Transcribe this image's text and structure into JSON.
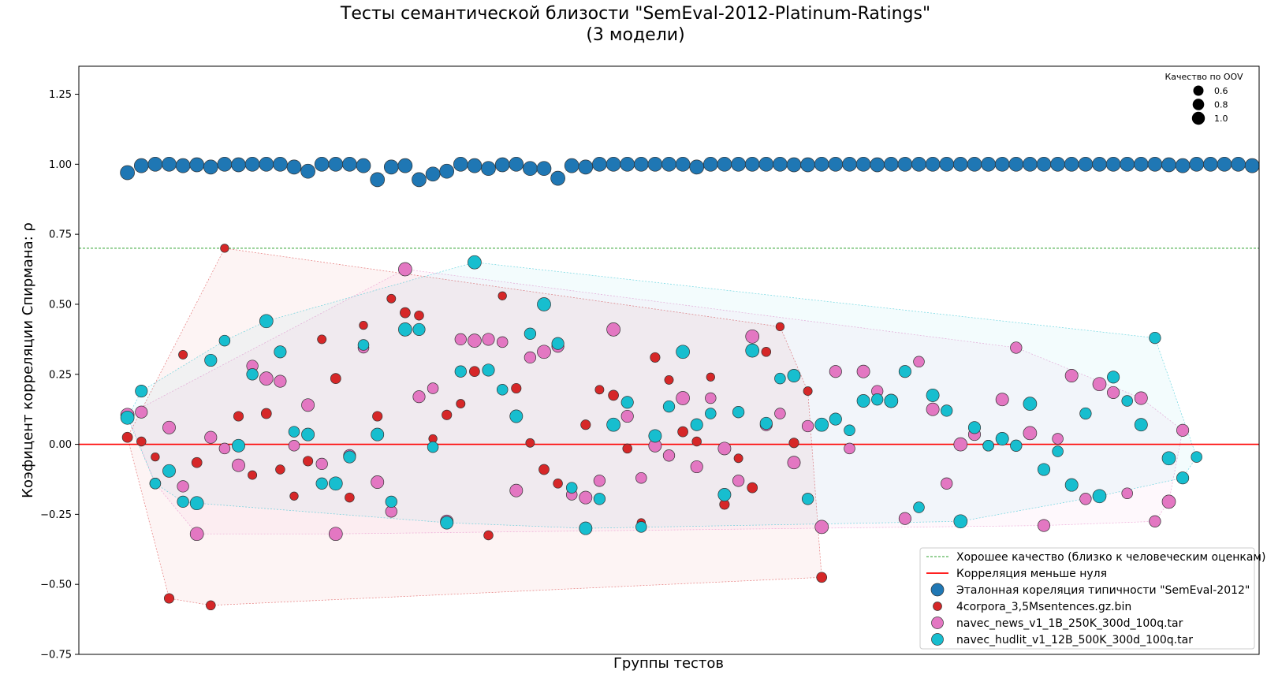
{
  "chart_data": {
    "type": "scatter",
    "title": "Тесты семантической близости \"SemEval-2012-Platinum-Ratings\"",
    "subtitle": "(3 модели)",
    "xlabel": "Группы тестов",
    "ylabel": "Коэфицент корреляции Спирмана: ρ",
    "xlim": [
      -3.5,
      81.5
    ],
    "ylim": [
      -0.75,
      1.35
    ],
    "yticks": [
      "1.25",
      "1.00",
      "0.75",
      "0.50",
      "0.25",
      "0.00",
      "−0.25",
      "−0.50",
      "−0.75"
    ],
    "ytick_values": [
      1.25,
      1.0,
      0.75,
      0.5,
      0.25,
      0.0,
      -0.25,
      -0.5,
      -0.75
    ],
    "grid": false,
    "legend_position": "lower-right",
    "reference_lines": [
      {
        "name": "Хорошее качество (близко к человеческим оценкам)",
        "y": 0.7,
        "style": "dashed",
        "color": "#2ca02c"
      },
      {
        "name": "Корреляция меньше нуля",
        "y": 0.0,
        "style": "solid",
        "color": "#ff0000"
      }
    ],
    "size_legend": {
      "title": "Качество по OOV",
      "entries": [
        "0.6",
        "0.8",
        "1.0"
      ],
      "values": [
        0.6,
        0.8,
        1.0
      ]
    },
    "series": [
      {
        "name": "Эталонная кореляция типичности \"SemEval-2012\"",
        "color": "#1f77b4",
        "hull": false,
        "points": [
          [
            0,
            0.97
          ],
          [
            1,
            0.995
          ],
          [
            2,
            1.0
          ],
          [
            3,
            1.0
          ],
          [
            4,
            0.995
          ],
          [
            5,
            0.998
          ],
          [
            6,
            0.99
          ],
          [
            7,
            1.0
          ],
          [
            8,
            0.998
          ],
          [
            9,
            1.0
          ],
          [
            10,
            1.0
          ],
          [
            11,
            1.0
          ],
          [
            12,
            0.99
          ],
          [
            13,
            0.975
          ],
          [
            14,
            1.0
          ],
          [
            15,
            1.0
          ],
          [
            16,
            1.0
          ],
          [
            17,
            0.995
          ],
          [
            18,
            0.945
          ],
          [
            19,
            0.99
          ],
          [
            20,
            0.995
          ],
          [
            21,
            0.945
          ],
          [
            22,
            0.965
          ],
          [
            23,
            0.975
          ],
          [
            24,
            1.0
          ],
          [
            25,
            0.995
          ],
          [
            26,
            0.985
          ],
          [
            27,
            0.998
          ],
          [
            28,
            1.0
          ],
          [
            29,
            0.985
          ],
          [
            30,
            0.985
          ],
          [
            31,
            0.95
          ],
          [
            32,
            0.995
          ],
          [
            33,
            0.99
          ],
          [
            34,
            1.0
          ],
          [
            35,
            1.0
          ],
          [
            36,
            1.0
          ],
          [
            37,
            1.0
          ],
          [
            38,
            1.0
          ],
          [
            39,
            1.0
          ],
          [
            40,
            1.0
          ],
          [
            41,
            0.99
          ],
          [
            42,
            1.0
          ],
          [
            43,
            1.0
          ],
          [
            44,
            1.0
          ],
          [
            45,
            1.0
          ],
          [
            46,
            1.0
          ],
          [
            47,
            1.0
          ],
          [
            48,
            0.998
          ],
          [
            49,
            0.998
          ],
          [
            50,
            1.0
          ],
          [
            51,
            1.0
          ],
          [
            52,
            1.0
          ],
          [
            53,
            1.0
          ],
          [
            54,
            0.998
          ],
          [
            55,
            1.0
          ],
          [
            56,
            1.0
          ],
          [
            57,
            1.0
          ],
          [
            58,
            1.0
          ],
          [
            59,
            1.0
          ],
          [
            60,
            1.0
          ],
          [
            61,
            1.0
          ],
          [
            62,
            1.0
          ],
          [
            63,
            1.0
          ],
          [
            64,
            1.0
          ],
          [
            65,
            1.0
          ],
          [
            66,
            1.0
          ],
          [
            67,
            1.0
          ],
          [
            68,
            1.0
          ],
          [
            69,
            1.0
          ],
          [
            70,
            1.0
          ],
          [
            71,
            1.0
          ],
          [
            72,
            1.0
          ],
          [
            73,
            1.0
          ],
          [
            74,
            1.0
          ],
          [
            75,
            0.998
          ],
          [
            76,
            0.995
          ],
          [
            77,
            1.0
          ],
          [
            78,
            1.0
          ],
          [
            79,
            1.0
          ],
          [
            80,
            1.0
          ],
          [
            81,
            0.995
          ]
        ]
      },
      {
        "name": "4corpora_3,5Msentences.gz.bin",
        "color": "#d62728",
        "hull": true,
        "points": [
          [
            0,
            0.025
          ],
          [
            1,
            0.01
          ],
          [
            2,
            -0.045
          ],
          [
            3,
            -0.55
          ],
          [
            4,
            0.32
          ],
          [
            5,
            -0.065
          ],
          [
            6,
            -0.575
          ],
          [
            7,
            0.7
          ],
          [
            8,
            0.1
          ],
          [
            9,
            -0.11
          ],
          [
            10,
            0.11
          ],
          [
            11,
            -0.09
          ],
          [
            12,
            -0.185
          ],
          [
            13,
            -0.06
          ],
          [
            14,
            0.375
          ],
          [
            15,
            0.235
          ],
          [
            16,
            -0.19
          ],
          [
            17,
            0.425
          ],
          [
            18,
            0.1
          ],
          [
            19,
            0.52
          ],
          [
            20,
            0.47
          ],
          [
            21,
            0.46
          ],
          [
            22,
            0.02
          ],
          [
            23,
            0.105
          ],
          [
            24,
            0.145
          ],
          [
            25,
            0.26
          ],
          [
            26,
            -0.325
          ],
          [
            27,
            0.53
          ],
          [
            28,
            0.2
          ],
          [
            29,
            0.005
          ],
          [
            30,
            -0.09
          ],
          [
            31,
            -0.14
          ],
          [
            32,
            -0.17
          ],
          [
            33,
            0.07
          ],
          [
            34,
            0.195
          ],
          [
            35,
            0.175
          ],
          [
            36,
            -0.015
          ],
          [
            37,
            -0.28
          ],
          [
            38,
            0.31
          ],
          [
            39,
            0.23
          ],
          [
            40,
            0.045
          ],
          [
            41,
            0.01
          ],
          [
            42,
            0.24
          ],
          [
            43,
            -0.215
          ],
          [
            44,
            -0.05
          ],
          [
            45,
            -0.155
          ],
          [
            46,
            0.33
          ],
          [
            47,
            0.42
          ],
          [
            48,
            0.005
          ],
          [
            49,
            0.19
          ],
          [
            50,
            -0.475
          ]
        ]
      },
      {
        "name": "navec_news_v1_1B_250K_300d_100q.tar",
        "color": "#e377c2",
        "hull": true,
        "points": [
          [
            0,
            0.105
          ],
          [
            1,
            0.115
          ],
          [
            2,
            -0.14
          ],
          [
            3,
            0.06
          ],
          [
            4,
            -0.15
          ],
          [
            5,
            -0.32
          ],
          [
            6,
            0.025
          ],
          [
            7,
            -0.015
          ],
          [
            8,
            -0.075
          ],
          [
            9,
            0.28
          ],
          [
            10,
            0.235
          ],
          [
            11,
            0.225
          ],
          [
            12,
            -0.005
          ],
          [
            13,
            0.14
          ],
          [
            14,
            -0.07
          ],
          [
            15,
            -0.32
          ],
          [
            16,
            -0.04
          ],
          [
            17,
            0.345
          ],
          [
            18,
            -0.135
          ],
          [
            19,
            -0.24
          ],
          [
            20,
            0.625
          ],
          [
            21,
            0.17
          ],
          [
            22,
            0.2
          ],
          [
            23,
            -0.275
          ],
          [
            24,
            0.375
          ],
          [
            25,
            0.37
          ],
          [
            26,
            0.375
          ],
          [
            27,
            0.365
          ],
          [
            28,
            -0.165
          ],
          [
            29,
            0.31
          ],
          [
            30,
            0.33
          ],
          [
            31,
            0.35
          ],
          [
            32,
            -0.18
          ],
          [
            33,
            -0.19
          ],
          [
            34,
            -0.13
          ],
          [
            35,
            0.41
          ],
          [
            36,
            0.1
          ],
          [
            37,
            -0.12
          ],
          [
            38,
            -0.005
          ],
          [
            39,
            -0.04
          ],
          [
            40,
            0.165
          ],
          [
            41,
            -0.08
          ],
          [
            42,
            0.165
          ],
          [
            43,
            -0.015
          ],
          [
            44,
            -0.13
          ],
          [
            45,
            0.385
          ],
          [
            46,
            0.07
          ],
          [
            47,
            0.11
          ],
          [
            48,
            -0.065
          ],
          [
            49,
            0.065
          ],
          [
            50,
            -0.295
          ],
          [
            51,
            0.26
          ],
          [
            52,
            -0.015
          ],
          [
            53,
            0.26
          ],
          [
            54,
            0.19
          ],
          [
            55,
            0.155
          ],
          [
            56,
            -0.265
          ],
          [
            57,
            0.295
          ],
          [
            58,
            0.125
          ],
          [
            59,
            -0.14
          ],
          [
            60,
            0.0
          ],
          [
            61,
            0.035
          ],
          [
            62,
            -0.005
          ],
          [
            63,
            0.16
          ],
          [
            64,
            0.345
          ],
          [
            65,
            0.04
          ],
          [
            66,
            -0.29
          ],
          [
            67,
            0.02
          ],
          [
            68,
            0.245
          ],
          [
            69,
            -0.195
          ],
          [
            70,
            0.215
          ],
          [
            71,
            0.185
          ],
          [
            72,
            -0.175
          ],
          [
            73,
            0.165
          ],
          [
            74,
            -0.275
          ],
          [
            75,
            -0.205
          ],
          [
            76,
            0.05
          ]
        ]
      },
      {
        "name": "navec_hudlit_v1_12B_500K_300d_100q.tar",
        "color": "#17becf",
        "hull": true,
        "points": [
          [
            0,
            0.095
          ],
          [
            1,
            0.19
          ],
          [
            2,
            -0.14
          ],
          [
            3,
            -0.095
          ],
          [
            4,
            -0.205
          ],
          [
            5,
            -0.21
          ],
          [
            6,
            0.3
          ],
          [
            7,
            0.37
          ],
          [
            8,
            -0.005
          ],
          [
            9,
            0.25
          ],
          [
            10,
            0.44
          ],
          [
            11,
            0.33
          ],
          [
            12,
            0.045
          ],
          [
            13,
            0.035
          ],
          [
            14,
            -0.14
          ],
          [
            15,
            -0.14
          ],
          [
            16,
            -0.045
          ],
          [
            17,
            0.355
          ],
          [
            18,
            0.035
          ],
          [
            19,
            -0.205
          ],
          [
            20,
            0.41
          ],
          [
            21,
            0.41
          ],
          [
            22,
            -0.01
          ],
          [
            23,
            -0.28
          ],
          [
            24,
            0.26
          ],
          [
            25,
            0.65
          ],
          [
            26,
            0.265
          ],
          [
            27,
            0.195
          ],
          [
            28,
            0.1
          ],
          [
            29,
            0.395
          ],
          [
            30,
            0.5
          ],
          [
            31,
            0.36
          ],
          [
            32,
            -0.155
          ],
          [
            33,
            -0.3
          ],
          [
            34,
            -0.195
          ],
          [
            35,
            0.07
          ],
          [
            36,
            0.15
          ],
          [
            37,
            -0.295
          ],
          [
            38,
            0.03
          ],
          [
            39,
            0.135
          ],
          [
            40,
            0.33
          ],
          [
            41,
            0.07
          ],
          [
            42,
            0.11
          ],
          [
            43,
            -0.18
          ],
          [
            44,
            0.115
          ],
          [
            45,
            0.335
          ],
          [
            46,
            0.075
          ],
          [
            47,
            0.235
          ],
          [
            48,
            0.245
          ],
          [
            49,
            -0.195
          ],
          [
            50,
            0.07
          ],
          [
            51,
            0.09
          ],
          [
            52,
            0.05
          ],
          [
            53,
            0.155
          ],
          [
            54,
            0.16
          ],
          [
            55,
            0.155
          ],
          [
            56,
            0.26
          ],
          [
            57,
            -0.225
          ],
          [
            58,
            0.175
          ],
          [
            59,
            0.12
          ],
          [
            60,
            -0.275
          ],
          [
            61,
            0.06
          ],
          [
            62,
            -0.005
          ],
          [
            63,
            0.02
          ],
          [
            64,
            -0.005
          ],
          [
            65,
            0.145
          ],
          [
            66,
            -0.09
          ],
          [
            67,
            -0.025
          ],
          [
            68,
            -0.145
          ],
          [
            69,
            0.11
          ],
          [
            70,
            -0.185
          ],
          [
            71,
            0.24
          ],
          [
            72,
            0.155
          ],
          [
            73,
            0.07
          ],
          [
            74,
            0.38
          ],
          [
            75,
            -0.05
          ],
          [
            76,
            -0.12
          ],
          [
            77,
            -0.045
          ]
        ]
      }
    ]
  }
}
